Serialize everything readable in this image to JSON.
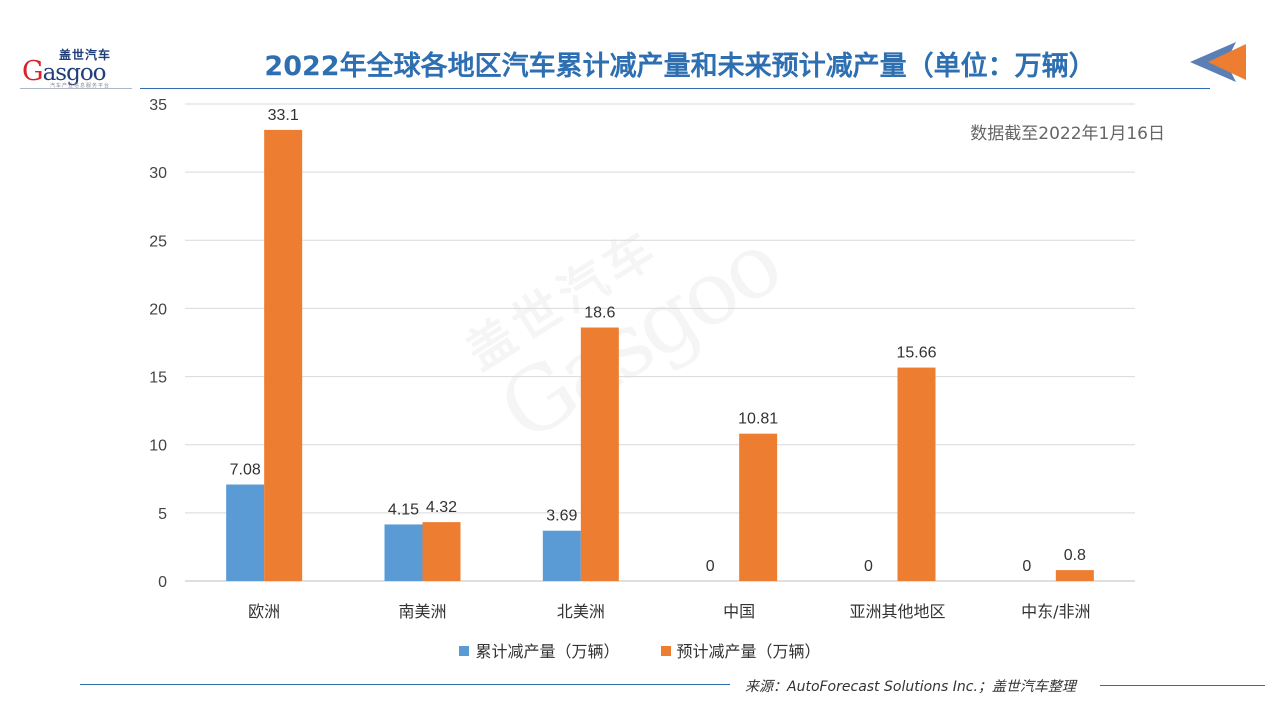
{
  "logo": {
    "cn": "盖世汽车",
    "en_initial": "G",
    "en_rest": "asgoo",
    "tagline": "汽车产业信息服务平台"
  },
  "title": "2022年全球各地区汽车累计减产量和未来预计减产量（单位：万辆）",
  "note": "数据截至2022年1月16日",
  "source": "来源：AutoForecast Solutions Inc.；盖世汽车整理",
  "colors": {
    "series1": "#5b9bd5",
    "series2": "#ed7d31",
    "title": "#2e6fb2"
  },
  "chart_data": {
    "type": "bar",
    "title": "2022年全球各地区汽车累计减产量和未来预计减产量（单位：万辆）",
    "xlabel": "",
    "ylabel": "",
    "ylim": [
      0,
      35
    ],
    "yticks": [
      0,
      5,
      10,
      15,
      20,
      25,
      30,
      35
    ],
    "grid": true,
    "legend_position": "bottom",
    "categories": [
      "欧洲",
      "南美洲",
      "北美洲",
      "中国",
      "亚洲其他地区",
      "中东/非洲"
    ],
    "series": [
      {
        "name": "累计减产量（万辆）",
        "values": [
          7.08,
          4.15,
          3.69,
          0,
          0,
          0
        ],
        "labels": [
          "7.08",
          "4.15",
          "3.69",
          "0",
          "0",
          "0"
        ]
      },
      {
        "name": "预计减产量（万辆）",
        "values": [
          33.1,
          4.32,
          18.6,
          10.81,
          15.66,
          0.8
        ],
        "labels": [
          "33.1",
          "4.32",
          "18.6",
          "10.81",
          "15.66",
          "0.8"
        ]
      }
    ]
  }
}
